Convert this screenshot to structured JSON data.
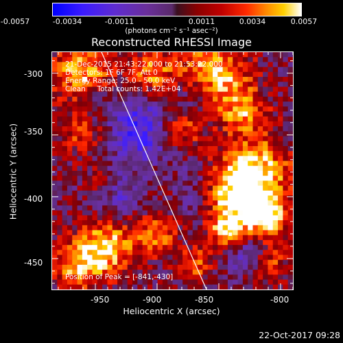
{
  "colorbar": {
    "ticks": [
      "-0.0057",
      "-0.0034",
      "-0.0011",
      "0.0011",
      "0.0034",
      "0.0057"
    ],
    "units": "(photons cm⁻² s⁻¹ asec⁻²)"
  },
  "chart_data": {
    "type": "heatmap",
    "title": "Reconstructed RHESSI Image",
    "xlabel": "Heliocentric X (arcsec)",
    "ylabel": "Heliocentric Y (arcsec)",
    "xlim": [
      -985,
      -790
    ],
    "ylim": [
      -475,
      -283
    ],
    "xticks": [
      "-950",
      "-900",
      "-850",
      "-800"
    ],
    "yticks": [
      "-300",
      "-350",
      "-400",
      "-450"
    ],
    "zlim": [
      -0.0057,
      0.0057
    ],
    "peak": [
      -841,
      -430
    ],
    "limb_line": [
      [
        -945,
        -283
      ],
      [
        -860,
        -475
      ]
    ],
    "annotations": [
      "21-Dec-2015 21:43:22.000 to 21:53:22.000",
      "Detectors: 1F 6F 7F, Att 0",
      "Energy Range: 25.0 - 50.0 keV",
      "Clean     Total counts: 1.42E+04",
      "Position of Peak = [-841,-430]"
    ],
    "grid": false
  },
  "footer": {
    "date": "22-Oct-2017 09:28"
  }
}
